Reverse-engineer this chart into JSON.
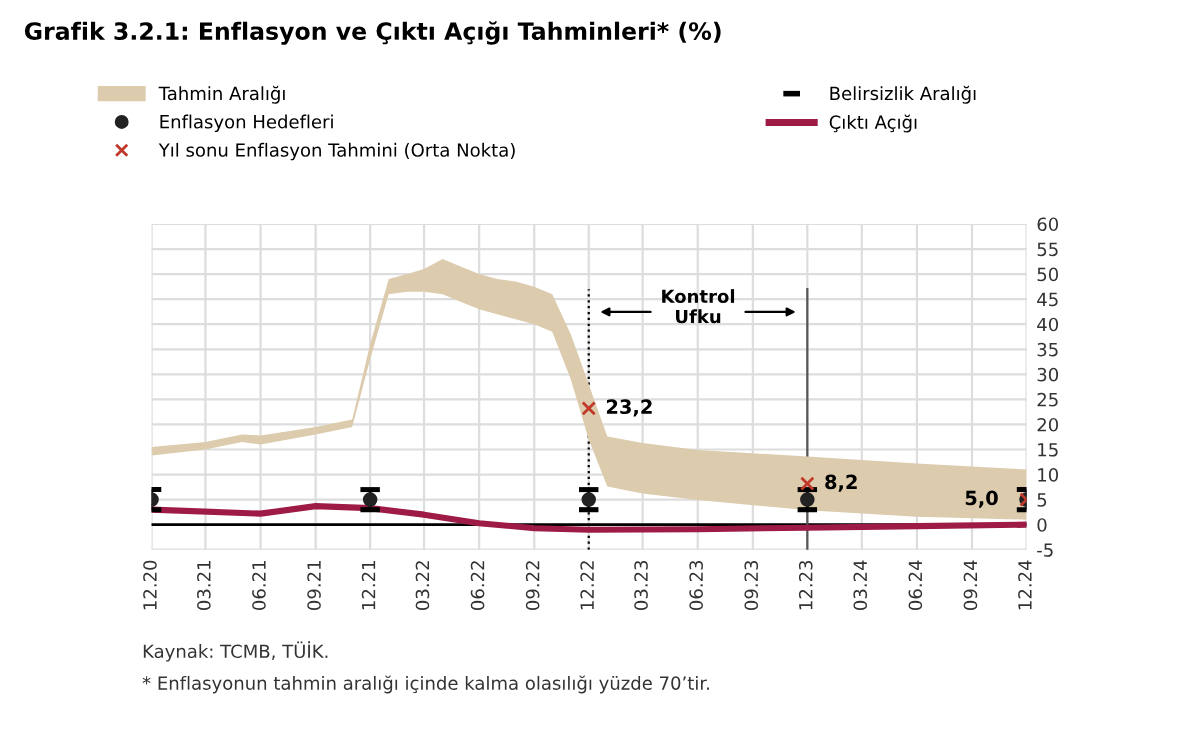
{
  "chart_data": {
    "type": "line",
    "title": "Grafik 3.2.1: Enflasyon ve Çıktı Açığı Tahminleri* (%)",
    "xlim": [
      "2020-12",
      "2024-12"
    ],
    "xticks": [
      {
        "value": "2020-12",
        "label": "12.20"
      },
      {
        "value": "2021-03",
        "label": "03.21"
      },
      {
        "value": "2021-06",
        "label": "06.21"
      },
      {
        "value": "2021-09",
        "label": "09.21"
      },
      {
        "value": "2021-12",
        "label": "12.21"
      },
      {
        "value": "2022-03",
        "label": "03.22"
      },
      {
        "value": "2022-06",
        "label": "06.22"
      },
      {
        "value": "2022-09",
        "label": "09.22"
      },
      {
        "value": "2022-12",
        "label": "12.22"
      },
      {
        "value": "2023-03",
        "label": "03.23"
      },
      {
        "value": "2023-06",
        "label": "06.23"
      },
      {
        "value": "2023-09",
        "label": "09.23"
      },
      {
        "value": "2023-12",
        "label": "12.23"
      },
      {
        "value": "2024-03",
        "label": "03.24"
      },
      {
        "value": "2024-06",
        "label": "06.24"
      },
      {
        "value": "2024-09",
        "label": "09.24"
      },
      {
        "value": "2024-12",
        "label": "12.24"
      }
    ],
    "ylim": [
      -5,
      60
    ],
    "yticks": [
      -5,
      0,
      5,
      10,
      15,
      20,
      25,
      30,
      35,
      40,
      45,
      50,
      55,
      60
    ],
    "grid": true,
    "legend": "top left",
    "series": [
      {
        "name": "Tahmin Aralığı",
        "type": "area",
        "color": "#dccbac",
        "x": [
          "2020-12",
          "2021-03",
          "2021-05",
          "2021-06",
          "2021-09",
          "2021-11",
          "2021-12",
          "2022-01",
          "2022-02",
          "2022-03",
          "2022-04",
          "2022-05",
          "2022-06",
          "2022-07",
          "2022-08",
          "2022-09",
          "2022-10",
          "2022-11",
          "2022-12",
          "2023-01",
          "2023-03",
          "2023-06",
          "2023-12",
          "2024-06",
          "2024-12"
        ],
        "lower": [
          13.8,
          15,
          16.5,
          16,
          18,
          19.5,
          33,
          46,
          46.5,
          46.5,
          46,
          44.5,
          43,
          42,
          41,
          40,
          38.5,
          29,
          17,
          7.6,
          6.2,
          4.9,
          2.9,
          1.6,
          1
        ],
        "upper": [
          15.5,
          16.5,
          18,
          17.8,
          19.5,
          21,
          36,
          49,
          50,
          51,
          53,
          51.5,
          50,
          49,
          48.5,
          47.5,
          46,
          38,
          28,
          17.6,
          16.3,
          14.9,
          13.6,
          12.2,
          11
        ],
        "values": [
          null,
          null,
          null,
          null,
          null,
          null,
          null,
          null,
          null,
          null,
          null,
          null,
          null,
          null,
          null,
          null,
          null,
          null,
          null,
          null,
          null,
          null,
          null,
          null,
          null
        ]
      },
      {
        "name": "Enflasyon Hedefleri",
        "type": "scatter",
        "marker": "circle",
        "color": "#222222",
        "x": [
          "2020-12",
          "2021-12",
          "2022-12",
          "2023-12",
          "2024-12"
        ],
        "values": [
          5,
          5,
          5,
          5,
          5
        ],
        "errors": [
          2,
          2,
          2,
          2,
          2
        ]
      },
      {
        "name": "Yıl sonu Enflasyon Tahmini (Orta Nokta)",
        "type": "scatter",
        "marker": "cross",
        "color": "#c0392b",
        "x": [
          "2022-12",
          "2023-12",
          "2024-12"
        ],
        "values": [
          23.2,
          8.2,
          5.0
        ],
        "value_labels": [
          "23,2",
          "8,2",
          "5,0"
        ]
      },
      {
        "name": "Belirsizlik Aralığı",
        "type": "scatter",
        "marker": "none",
        "color": "#000000"
      },
      {
        "name": "Çıktı Açığı",
        "color": "#9e1b45",
        "x": [
          "2020-12",
          "2021-06",
          "2021-09",
          "2021-12",
          "2022-03",
          "2022-06",
          "2022-09",
          "2022-12",
          "2023-06",
          "2023-12",
          "2024-06",
          "2024-12"
        ],
        "values": [
          3.0,
          2.2,
          3.7,
          3.3,
          2.0,
          0.3,
          -0.7,
          -1,
          -0.9,
          -0.6,
          -0.3,
          0
        ]
      }
    ],
    "ref_lines": [
      {
        "axis": "y",
        "value": 0,
        "color": "#000000",
        "line_style": "solid"
      },
      {
        "axis": "x",
        "value": "2022-12",
        "color": "#000000",
        "line_style": "dotted"
      },
      {
        "axis": "x",
        "value": "2023-12",
        "color": "#555555",
        "line_style": "solid"
      }
    ],
    "annotations": [
      "Kontrol\nUfku",
      "Kaynak: TCMB, TÜİK.",
      "* Enflasyonun tahmin aralığı içinde kalma olasılığı yüzde 70’tir."
    ]
  }
}
